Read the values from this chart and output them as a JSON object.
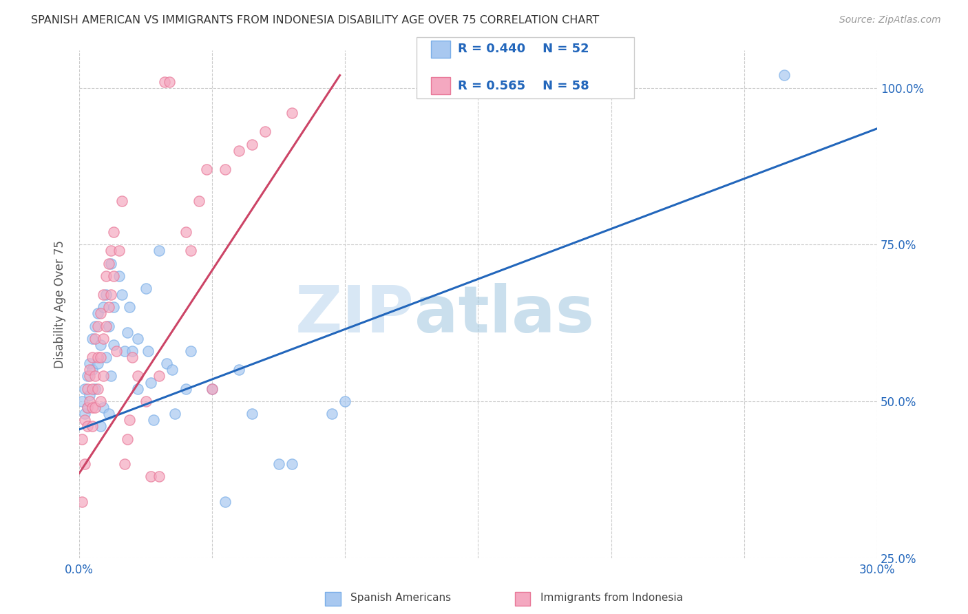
{
  "title": "SPANISH AMERICAN VS IMMIGRANTS FROM INDONESIA DISABILITY AGE OVER 75 CORRELATION CHART",
  "source": "Source: ZipAtlas.com",
  "ylabel": "Disability Age Over 75",
  "xlim": [
    0.0,
    0.3
  ],
  "ylim": [
    0.28,
    1.06
  ],
  "legend_blue_r": "R = 0.440",
  "legend_blue_n": "N = 52",
  "legend_pink_r": "R = 0.565",
  "legend_pink_n": "N = 58",
  "legend_label_blue": "Spanish Americans",
  "legend_label_pink": "Immigrants from Indonesia",
  "blue_color": "#A8C8F0",
  "pink_color": "#F4A8C0",
  "blue_edge": "#7AAEE8",
  "pink_edge": "#E87898",
  "trend_blue": "#2266BB",
  "trend_pink": "#CC4466",
  "blue_scatter": [
    [
      0.001,
      0.5
    ],
    [
      0.002,
      0.52
    ],
    [
      0.002,
      0.48
    ],
    [
      0.003,
      0.54
    ],
    [
      0.003,
      0.49
    ],
    [
      0.004,
      0.56
    ],
    [
      0.004,
      0.51
    ],
    [
      0.005,
      0.55
    ],
    [
      0.005,
      0.6
    ],
    [
      0.006,
      0.62
    ],
    [
      0.006,
      0.52
    ],
    [
      0.007,
      0.64
    ],
    [
      0.007,
      0.56
    ],
    [
      0.008,
      0.59
    ],
    [
      0.008,
      0.46
    ],
    [
      0.009,
      0.65
    ],
    [
      0.009,
      0.49
    ],
    [
      0.01,
      0.67
    ],
    [
      0.01,
      0.57
    ],
    [
      0.011,
      0.62
    ],
    [
      0.011,
      0.48
    ],
    [
      0.012,
      0.72
    ],
    [
      0.012,
      0.54
    ],
    [
      0.013,
      0.65
    ],
    [
      0.013,
      0.59
    ],
    [
      0.015,
      0.7
    ],
    [
      0.016,
      0.67
    ],
    [
      0.017,
      0.58
    ],
    [
      0.018,
      0.61
    ],
    [
      0.019,
      0.65
    ],
    [
      0.02,
      0.58
    ],
    [
      0.022,
      0.52
    ],
    [
      0.022,
      0.6
    ],
    [
      0.025,
      0.68
    ],
    [
      0.026,
      0.58
    ],
    [
      0.027,
      0.53
    ],
    [
      0.028,
      0.47
    ],
    [
      0.03,
      0.74
    ],
    [
      0.033,
      0.56
    ],
    [
      0.035,
      0.55
    ],
    [
      0.036,
      0.48
    ],
    [
      0.04,
      0.52
    ],
    [
      0.042,
      0.58
    ],
    [
      0.05,
      0.52
    ],
    [
      0.055,
      0.34
    ],
    [
      0.06,
      0.55
    ],
    [
      0.065,
      0.48
    ],
    [
      0.075,
      0.4
    ],
    [
      0.08,
      0.4
    ],
    [
      0.095,
      0.48
    ],
    [
      0.1,
      0.5
    ],
    [
      0.265,
      1.02
    ]
  ],
  "pink_scatter": [
    [
      0.001,
      0.44
    ],
    [
      0.001,
      0.34
    ],
    [
      0.002,
      0.47
    ],
    [
      0.002,
      0.4
    ],
    [
      0.003,
      0.52
    ],
    [
      0.003,
      0.49
    ],
    [
      0.003,
      0.46
    ],
    [
      0.004,
      0.54
    ],
    [
      0.004,
      0.5
    ],
    [
      0.004,
      0.55
    ],
    [
      0.005,
      0.57
    ],
    [
      0.005,
      0.52
    ],
    [
      0.005,
      0.49
    ],
    [
      0.005,
      0.46
    ],
    [
      0.006,
      0.6
    ],
    [
      0.006,
      0.54
    ],
    [
      0.006,
      0.49
    ],
    [
      0.007,
      0.62
    ],
    [
      0.007,
      0.57
    ],
    [
      0.007,
      0.52
    ],
    [
      0.008,
      0.64
    ],
    [
      0.008,
      0.57
    ],
    [
      0.008,
      0.5
    ],
    [
      0.009,
      0.67
    ],
    [
      0.009,
      0.6
    ],
    [
      0.009,
      0.54
    ],
    [
      0.01,
      0.7
    ],
    [
      0.01,
      0.62
    ],
    [
      0.011,
      0.72
    ],
    [
      0.011,
      0.65
    ],
    [
      0.012,
      0.74
    ],
    [
      0.012,
      0.67
    ],
    [
      0.013,
      0.77
    ],
    [
      0.013,
      0.7
    ],
    [
      0.014,
      0.58
    ],
    [
      0.015,
      0.74
    ],
    [
      0.016,
      0.82
    ],
    [
      0.017,
      0.4
    ],
    [
      0.018,
      0.44
    ],
    [
      0.019,
      0.47
    ],
    [
      0.02,
      0.57
    ],
    [
      0.022,
      0.54
    ],
    [
      0.025,
      0.5
    ],
    [
      0.027,
      0.38
    ],
    [
      0.03,
      0.38
    ],
    [
      0.03,
      0.54
    ],
    [
      0.032,
      1.01
    ],
    [
      0.034,
      1.01
    ],
    [
      0.04,
      0.77
    ],
    [
      0.042,
      0.74
    ],
    [
      0.045,
      0.82
    ],
    [
      0.048,
      0.87
    ],
    [
      0.05,
      0.52
    ],
    [
      0.055,
      0.87
    ],
    [
      0.06,
      0.9
    ],
    [
      0.065,
      0.91
    ],
    [
      0.07,
      0.93
    ],
    [
      0.08,
      0.96
    ]
  ],
  "blue_trend_x": [
    0.0,
    0.3
  ],
  "blue_trend_y": [
    0.455,
    0.935
  ],
  "pink_trend_x": [
    0.0,
    0.098
  ],
  "pink_trend_y": [
    0.385,
    1.02
  ],
  "watermark_zip": "ZIP",
  "watermark_atlas": "atlas",
  "background_color": "#ffffff",
  "grid_color": "#cccccc",
  "ytick_positions": [
    0.25,
    0.5,
    0.75,
    1.0
  ],
  "ytick_labels": [
    "25.0%",
    "50.0%",
    "75.0%",
    "100.0%"
  ],
  "xtick_positions": [
    0.0,
    0.05,
    0.1,
    0.15,
    0.2,
    0.25,
    0.3
  ],
  "xtick_labels": [
    "0.0%",
    "",
    "",
    "",
    "",
    "",
    "30.0%"
  ]
}
